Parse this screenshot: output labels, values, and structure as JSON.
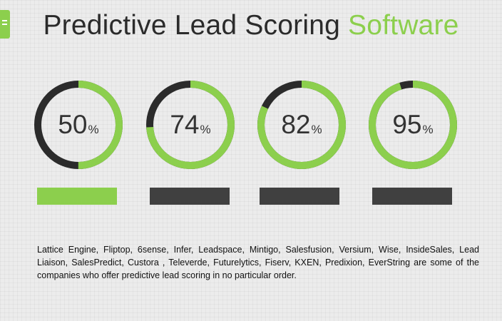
{
  "title": {
    "main": "Predictive Lead Scoring",
    "accent": "Software"
  },
  "colors": {
    "accent": "#8ccf4d",
    "dark": "#2b2b2b",
    "bar_dark": "#404040"
  },
  "gauges": [
    {
      "value": "50",
      "unit": "%",
      "fraction": 0.5
    },
    {
      "value": "74",
      "unit": "%",
      "fraction": 0.74
    },
    {
      "value": "82",
      "unit": "%",
      "fraction": 0.82
    },
    {
      "value": "95",
      "unit": "%",
      "fraction": 0.95
    }
  ],
  "bars": [
    {
      "active": true
    },
    {
      "active": false
    },
    {
      "active": false
    },
    {
      "active": false
    }
  ],
  "description": "Lattice Engine, Fliptop, 6sense, Infer, Leadspace, Mintigo, Salesfusion, Versium, Wise, InsideSales, Lead Liaison, SalesPredict, Custora , Televerde, Futurelytics, Fiserv, KXEN, Predixion, EverString are some of the companies who offer predictive lead scoring in no particular order."
}
